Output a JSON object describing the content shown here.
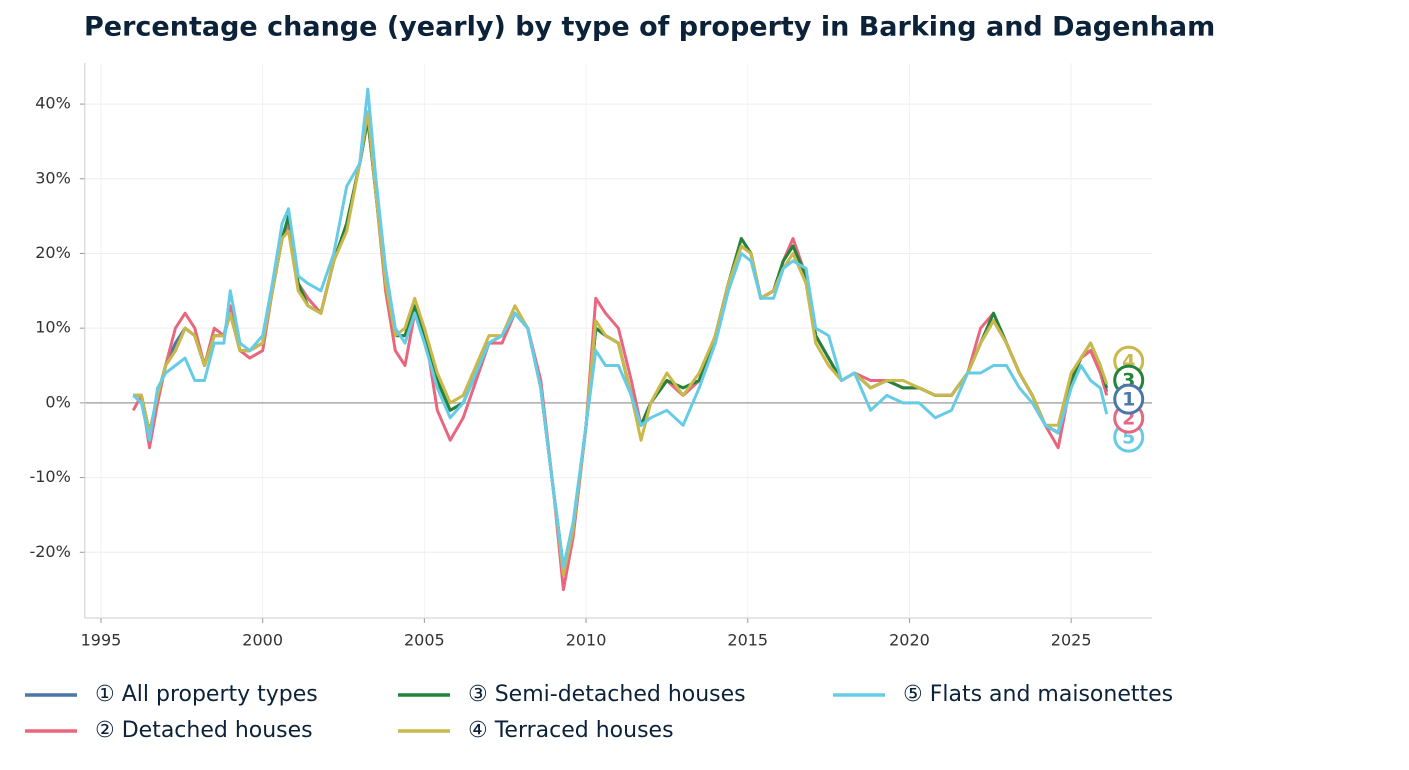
{
  "chart_data": {
    "type": "line",
    "title": "Percentage change (yearly) by type of property in Barking and Dagenham",
    "x": [
      1996.0,
      1996.25,
      1996.5,
      1996.75,
      1997.0,
      1997.3,
      1997.6,
      1997.9,
      1998.2,
      1998.5,
      1998.8,
      1999.0,
      1999.3,
      1999.6,
      2000.0,
      2000.3,
      2000.6,
      2000.8,
      2001.1,
      2001.4,
      2001.8,
      2002.2,
      2002.6,
      2003.0,
      2003.25,
      2003.5,
      2003.8,
      2004.1,
      2004.4,
      2004.7,
      2005.0,
      2005.4,
      2005.8,
      2006.2,
      2006.6,
      2007.0,
      2007.4,
      2007.8,
      2008.2,
      2008.6,
      2009.0,
      2009.3,
      2009.6,
      2010.0,
      2010.3,
      2010.6,
      2011.0,
      2011.4,
      2011.7,
      2012.0,
      2012.5,
      2013.0,
      2013.5,
      2014.0,
      2014.4,
      2014.8,
      2015.1,
      2015.4,
      2015.8,
      2016.1,
      2016.4,
      2016.8,
      2017.1,
      2017.5,
      2017.9,
      2018.3,
      2018.8,
      2019.3,
      2019.8,
      2020.3,
      2020.8,
      2021.3,
      2021.8,
      2022.2,
      2022.6,
      2023.0,
      2023.4,
      2023.8,
      2024.2,
      2024.6,
      2025.0,
      2025.3,
      2025.6,
      2025.9,
      2026.1
    ],
    "series": [
      {
        "name": "① All property types",
        "end_label": "1",
        "color": "#4a77a8",
        "values": [
          1,
          1,
          -4,
          1,
          5,
          8,
          10,
          9,
          5,
          9,
          9,
          12,
          7,
          7,
          8,
          15,
          22,
          24,
          16,
          14,
          12,
          19,
          24,
          32,
          38,
          28,
          16,
          9,
          9,
          13,
          10,
          3,
          -1,
          0,
          4,
          8,
          9,
          12,
          10,
          2,
          -12,
          -22,
          -17,
          -3,
          10,
          9,
          8,
          1,
          -3,
          0,
          3,
          1,
          3,
          9,
          16,
          21,
          20,
          14,
          15,
          19,
          21,
          17,
          9,
          6,
          3,
          4,
          2,
          3,
          2,
          2,
          1,
          1,
          4,
          8,
          11,
          8,
          4,
          1,
          -3,
          -4,
          3,
          6,
          7,
          5,
          1.5
        ]
      },
      {
        "name": "② Detached houses",
        "end_label": "2",
        "color": "#e8677e",
        "values": [
          -1,
          1,
          -6,
          0,
          5,
          10,
          12,
          10,
          5,
          10,
          9,
          13,
          7,
          6,
          7,
          15,
          22,
          24,
          16,
          14,
          12,
          19,
          24,
          32,
          38,
          28,
          15,
          7,
          5,
          12,
          10,
          -1,
          -5,
          -2,
          3,
          8,
          8,
          12,
          10,
          3,
          -12,
          -25,
          -18,
          -3,
          14,
          12,
          10,
          3,
          -3,
          0,
          3,
          1,
          3,
          9,
          16,
          21,
          20,
          14,
          15,
          19,
          22,
          17,
          9,
          6,
          3,
          4,
          3,
          3,
          2,
          2,
          1,
          1,
          4,
          10,
          12,
          8,
          4,
          1,
          -3,
          -6,
          3,
          6,
          7,
          4,
          1
        ]
      },
      {
        "name": "③ Semi-detached houses",
        "end_label": "3",
        "color": "#23833a",
        "values": [
          1,
          1,
          -4,
          1,
          5,
          7,
          10,
          9,
          5,
          9,
          9,
          12,
          7,
          7,
          8,
          15,
          22,
          25,
          16,
          13,
          12,
          19,
          24,
          32,
          38,
          28,
          16,
          9,
          9,
          13,
          9,
          3,
          -1,
          0,
          4,
          8,
          9,
          12,
          10,
          2,
          -12,
          -22,
          -17,
          -3,
          10,
          9,
          8,
          1,
          -3,
          0,
          3,
          2,
          3,
          9,
          16,
          22,
          20,
          14,
          15,
          19,
          21,
          17,
          9,
          6,
          3,
          4,
          2,
          3,
          2,
          2,
          1,
          1,
          4,
          8,
          12,
          8,
          4,
          1,
          -3,
          -4,
          3,
          6,
          8,
          5,
          2
        ]
      },
      {
        "name": "④ Terraced houses",
        "end_label": "4",
        "color": "#cbb84a",
        "values": [
          1,
          1,
          -4,
          1,
          5,
          7,
          10,
          9,
          5,
          9,
          9,
          12,
          7,
          7,
          8,
          15,
          22,
          23,
          15,
          13,
          12,
          19,
          23,
          32,
          39,
          28,
          16,
          9,
          10,
          14,
          10,
          4,
          0,
          1,
          5,
          9,
          9,
          13,
          10,
          2,
          -12,
          -23,
          -17,
          -3,
          11,
          9,
          8,
          1,
          -5,
          0,
          4,
          1,
          4,
          9,
          16,
          21,
          20,
          14,
          15,
          18,
          20,
          16,
          8,
          5,
          3,
          4,
          2,
          3,
          3,
          2,
          1,
          1,
          4,
          8,
          11,
          8,
          4,
          1,
          -3,
          -3,
          4,
          6,
          8,
          5,
          2.5
        ]
      },
      {
        "name": "⑤ Flats and maisonettes",
        "end_label": "5",
        "color": "#66cbe6",
        "values": [
          1,
          0,
          -5,
          2,
          4,
          5,
          6,
          3,
          3,
          8,
          8,
          15,
          8,
          7,
          9,
          16,
          24,
          26,
          17,
          16,
          15,
          20,
          29,
          32,
          42,
          30,
          18,
          10,
          8,
          12,
          8,
          2,
          -2,
          0,
          4,
          8,
          9,
          12,
          10,
          2,
          -12,
          -22,
          -16,
          -3,
          7,
          5,
          5,
          1,
          -3,
          -2,
          -1,
          -3,
          2,
          8,
          15,
          20,
          19,
          14,
          14,
          18,
          19,
          18,
          10,
          9,
          3,
          4,
          -1,
          1,
          0,
          0,
          -2,
          -1,
          4,
          4,
          5,
          5,
          2,
          0,
          -3,
          -4,
          2,
          5,
          3,
          2,
          -1.5
        ]
      }
    ],
    "xlim": [
      1994.5,
      2027.5
    ],
    "xticks": [
      1995,
      2000,
      2005,
      2010,
      2015,
      2020,
      2025
    ],
    "ylim": [
      -28.8,
      45.5
    ],
    "yticks": [
      {
        "value": -20,
        "label": "-20%"
      },
      {
        "value": -10,
        "label": "-10%"
      },
      {
        "value": 0,
        "label": "0%"
      },
      {
        "value": 10,
        "label": "10%"
      },
      {
        "value": 20,
        "label": "20%"
      },
      {
        "value": 30,
        "label": "30%"
      },
      {
        "value": 40,
        "label": "40%"
      }
    ],
    "grid": true
  }
}
